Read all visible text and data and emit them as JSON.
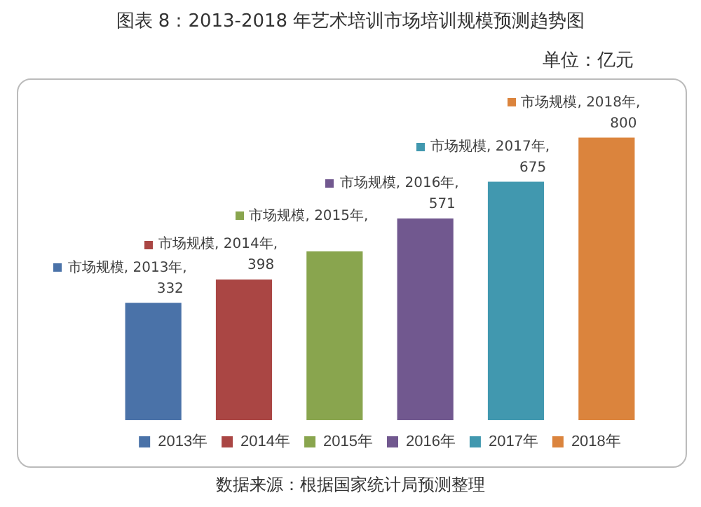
{
  "chart_data": {
    "type": "bar",
    "title": "图表 8：2013-2018 年艺术培训市场培训规模预测趋势图",
    "subtitle": "单位：亿元",
    "annotations": [
      "数据来源：根据国家统计局预测整理",
      "市场规模, 2015年,"
    ],
    "stacked": true,
    "categories": [
      null,
      null,
      null,
      null,
      null,
      null
    ],
    "tick_labels": false,
    "legend": "bottom",
    "series": [
      {
        "name": "2013年",
        "color": "#4a72a8",
        "values": [
          332,
          null,
          null,
          null,
          null,
          null
        ],
        "value_labels": [
          "市场规模, 2013年, 332",
          null,
          null,
          null,
          null,
          null
        ]
      },
      {
        "name": "2014年",
        "color": "#aa4644",
        "values": [
          null,
          398,
          null,
          null,
          null,
          null
        ],
        "value_labels": [
          null,
          "市场规模, 2014年, 398",
          null,
          null,
          null,
          null
        ]
      },
      {
        "name": "2015年",
        "color": "#89a54e",
        "values": [
          null,
          null,
          478,
          null,
          null,
          null
        ]
      },
      {
        "name": "2016年",
        "color": "#71588f",
        "values": [
          null,
          null,
          null,
          571,
          null,
          null
        ],
        "value_labels": [
          null,
          null,
          null,
          "市场规模, 2016年, 571",
          null,
          null
        ]
      },
      {
        "name": "2017年",
        "color": "#4198af",
        "values": [
          null,
          null,
          null,
          null,
          675,
          null
        ],
        "value_labels": [
          null,
          null,
          null,
          null,
          "市场规模, 2017年, 675",
          null
        ]
      },
      {
        "name": "2018年",
        "color": "#db843d",
        "values": [
          null,
          null,
          null,
          null,
          null,
          800
        ],
        "value_labels": [
          null,
          null,
          null,
          null,
          null,
          "市场规模, 2018年, 800"
        ]
      }
    ]
  }
}
